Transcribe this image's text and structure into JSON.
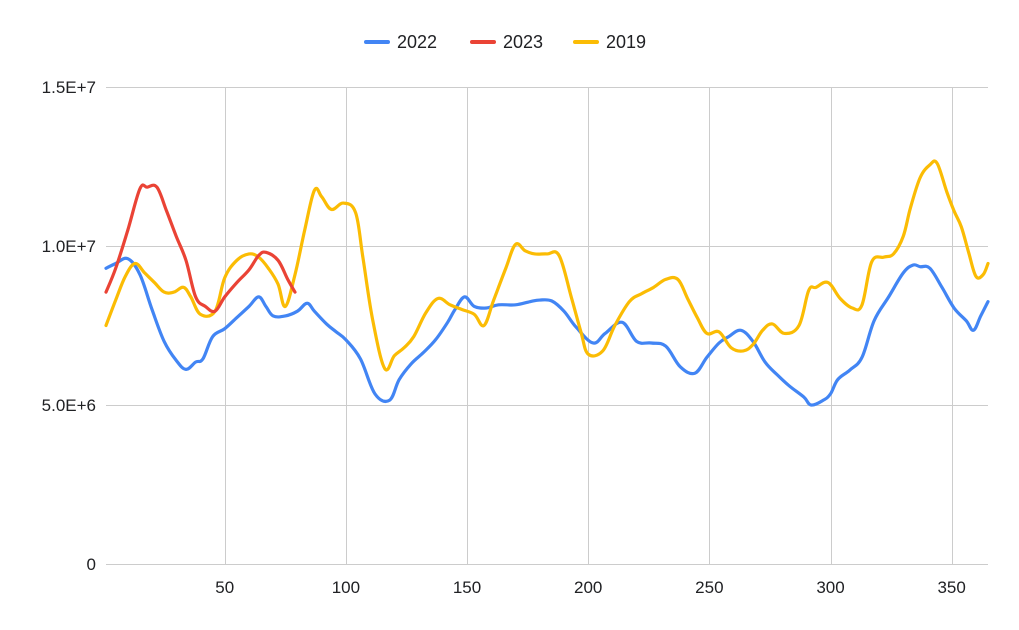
{
  "chart_data": {
    "type": "line",
    "title": "",
    "xlabel": "",
    "ylabel": "",
    "xlim": [
      1,
      365
    ],
    "ylim": [
      0,
      15000000
    ],
    "grid": true,
    "legend_position": "top",
    "x_ticks": [
      {
        "value": 50,
        "label": "50"
      },
      {
        "value": 100,
        "label": "100"
      },
      {
        "value": 150,
        "label": "150"
      },
      {
        "value": 200,
        "label": "200"
      },
      {
        "value": 250,
        "label": "250"
      },
      {
        "value": 300,
        "label": "300"
      },
      {
        "value": 350,
        "label": "350"
      }
    ],
    "y_ticks": [
      {
        "value": 0,
        "label": "0"
      },
      {
        "value": 5000000,
        "label": "5.0E+6"
      },
      {
        "value": 10000000,
        "label": "1.0E+7"
      },
      {
        "value": 15000000,
        "label": "1.5E+7"
      }
    ],
    "series": [
      {
        "name": "2022",
        "color": "#4285f4",
        "points": [
          [
            1,
            9300000
          ],
          [
            5,
            9450000
          ],
          [
            10,
            9600000
          ],
          [
            15,
            9100000
          ],
          [
            20,
            8000000
          ],
          [
            25,
            7000000
          ],
          [
            30,
            6400000
          ],
          [
            34,
            6120000
          ],
          [
            38,
            6350000
          ],
          [
            41,
            6450000
          ],
          [
            45,
            7150000
          ],
          [
            50,
            7400000
          ],
          [
            55,
            7750000
          ],
          [
            60,
            8100000
          ],
          [
            64,
            8400000
          ],
          [
            67,
            8100000
          ],
          [
            70,
            7800000
          ],
          [
            75,
            7800000
          ],
          [
            80,
            7950000
          ],
          [
            84,
            8200000
          ],
          [
            87,
            7950000
          ],
          [
            92,
            7550000
          ],
          [
            96,
            7300000
          ],
          [
            100,
            7050000
          ],
          [
            106,
            6450000
          ],
          [
            112,
            5350000
          ],
          [
            118,
            5150000
          ],
          [
            122,
            5800000
          ],
          [
            127,
            6300000
          ],
          [
            132,
            6650000
          ],
          [
            137,
            7050000
          ],
          [
            142,
            7600000
          ],
          [
            145,
            8000000
          ],
          [
            149,
            8400000
          ],
          [
            153,
            8100000
          ],
          [
            158,
            8050000
          ],
          [
            163,
            8150000
          ],
          [
            170,
            8150000
          ],
          [
            176,
            8250000
          ],
          [
            180,
            8300000
          ],
          [
            185,
            8270000
          ],
          [
            190,
            7950000
          ],
          [
            195,
            7450000
          ],
          [
            202,
            6950000
          ],
          [
            207,
            7250000
          ],
          [
            214,
            7600000
          ],
          [
            220,
            7000000
          ],
          [
            226,
            6950000
          ],
          [
            232,
            6850000
          ],
          [
            238,
            6200000
          ],
          [
            244,
            6000000
          ],
          [
            249,
            6500000
          ],
          [
            254,
            6950000
          ],
          [
            258,
            7150000
          ],
          [
            263,
            7350000
          ],
          [
            268,
            7000000
          ],
          [
            273,
            6350000
          ],
          [
            278,
            5950000
          ],
          [
            283,
            5600000
          ],
          [
            289,
            5250000
          ],
          [
            292,
            5000000
          ],
          [
            297,
            5150000
          ],
          [
            300,
            5350000
          ],
          [
            303,
            5800000
          ],
          [
            308,
            6100000
          ],
          [
            313,
            6500000
          ],
          [
            318,
            7650000
          ],
          [
            324,
            8400000
          ],
          [
            330,
            9150000
          ],
          [
            334,
            9400000
          ],
          [
            337,
            9350000
          ],
          [
            341,
            9300000
          ],
          [
            346,
            8700000
          ],
          [
            351,
            8050000
          ],
          [
            356,
            7650000
          ],
          [
            359,
            7350000
          ],
          [
            362,
            7800000
          ],
          [
            365,
            8250000
          ]
        ]
      },
      {
        "name": "2023",
        "color": "#ea4335",
        "points": [
          [
            1,
            8550000
          ],
          [
            5,
            9300000
          ],
          [
            10,
            10500000
          ],
          [
            15,
            11800000
          ],
          [
            18,
            11850000
          ],
          [
            22,
            11850000
          ],
          [
            26,
            11100000
          ],
          [
            30,
            10300000
          ],
          [
            34,
            9550000
          ],
          [
            38,
            8400000
          ],
          [
            42,
            8100000
          ],
          [
            46,
            7950000
          ],
          [
            50,
            8400000
          ],
          [
            55,
            8850000
          ],
          [
            60,
            9250000
          ],
          [
            64,
            9700000
          ],
          [
            67,
            9800000
          ],
          [
            72,
            9550000
          ],
          [
            76,
            8950000
          ],
          [
            79,
            8550000
          ]
        ]
      },
      {
        "name": "2019",
        "color": "#fbbc04",
        "points": [
          [
            1,
            7500000
          ],
          [
            5,
            8300000
          ],
          [
            9,
            9050000
          ],
          [
            13,
            9450000
          ],
          [
            17,
            9150000
          ],
          [
            21,
            8850000
          ],
          [
            25,
            8550000
          ],
          [
            29,
            8550000
          ],
          [
            33,
            8700000
          ],
          [
            36,
            8400000
          ],
          [
            40,
            7850000
          ],
          [
            46,
            7950000
          ],
          [
            50,
            9000000
          ],
          [
            55,
            9550000
          ],
          [
            60,
            9750000
          ],
          [
            64,
            9650000
          ],
          [
            68,
            9300000
          ],
          [
            72,
            8800000
          ],
          [
            75,
            8100000
          ],
          [
            79,
            9100000
          ],
          [
            83,
            10500000
          ],
          [
            87,
            11750000
          ],
          [
            90,
            11550000
          ],
          [
            94,
            11150000
          ],
          [
            99,
            11350000
          ],
          [
            104,
            11050000
          ],
          [
            107,
            9650000
          ],
          [
            111,
            7700000
          ],
          [
            116,
            6150000
          ],
          [
            120,
            6550000
          ],
          [
            124,
            6800000
          ],
          [
            128,
            7150000
          ],
          [
            133,
            7900000
          ],
          [
            138,
            8350000
          ],
          [
            143,
            8150000
          ],
          [
            148,
            8000000
          ],
          [
            153,
            7850000
          ],
          [
            157,
            7500000
          ],
          [
            161,
            8300000
          ],
          [
            166,
            9300000
          ],
          [
            170,
            10050000
          ],
          [
            174,
            9850000
          ],
          [
            178,
            9750000
          ],
          [
            183,
            9750000
          ],
          [
            188,
            9700000
          ],
          [
            193,
            8400000
          ],
          [
            197,
            7300000
          ],
          [
            200,
            6600000
          ],
          [
            206,
            6700000
          ],
          [
            211,
            7500000
          ],
          [
            217,
            8250000
          ],
          [
            222,
            8500000
          ],
          [
            227,
            8700000
          ],
          [
            232,
            8950000
          ],
          [
            237,
            8950000
          ],
          [
            241,
            8350000
          ],
          [
            245,
            7750000
          ],
          [
            249,
            7250000
          ],
          [
            254,
            7300000
          ],
          [
            259,
            6800000
          ],
          [
            264,
            6700000
          ],
          [
            268,
            6900000
          ],
          [
            272,
            7350000
          ],
          [
            276,
            7550000
          ],
          [
            281,
            7250000
          ],
          [
            287,
            7500000
          ],
          [
            291,
            8600000
          ],
          [
            294,
            8700000
          ],
          [
            299,
            8850000
          ],
          [
            304,
            8350000
          ],
          [
            309,
            8050000
          ],
          [
            313,
            8150000
          ],
          [
            317,
            9500000
          ],
          [
            322,
            9650000
          ],
          [
            326,
            9750000
          ],
          [
            330,
            10300000
          ],
          [
            333,
            11200000
          ],
          [
            337,
            12150000
          ],
          [
            341,
            12550000
          ],
          [
            344,
            12600000
          ],
          [
            348,
            11700000
          ],
          [
            351,
            11100000
          ],
          [
            354,
            10600000
          ],
          [
            357,
            9800000
          ],
          [
            360,
            9050000
          ],
          [
            363,
            9100000
          ],
          [
            365,
            9450000
          ]
        ]
      }
    ]
  }
}
